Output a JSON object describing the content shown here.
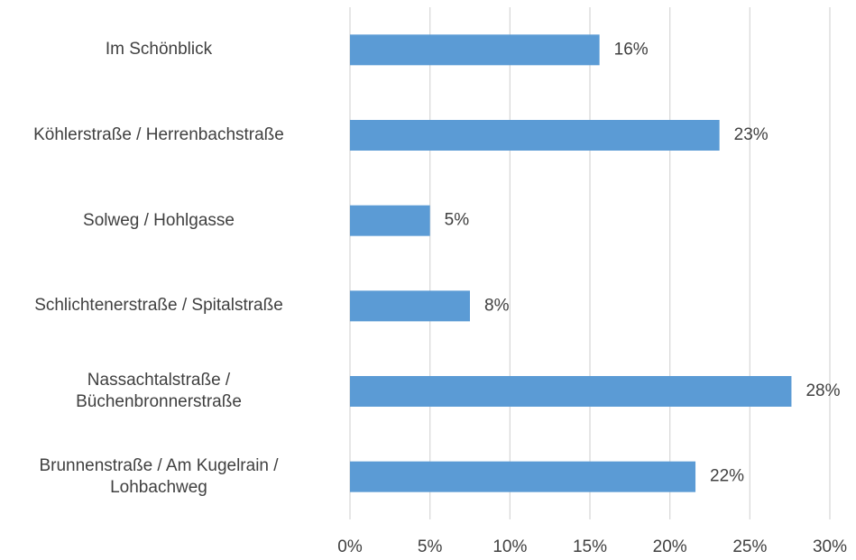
{
  "chart_data": {
    "type": "barh",
    "categories": [
      "Im Schönblick",
      "Köhlerstraße / Herrenbachstraße",
      "Solweg / Hohlgasse",
      "Schlichtenerstraße / Spitalstraße",
      "Nassachtalstraße /\nBüchenbronnerstraße",
      "Brunnenstraße / Am Kugelrain /\nLohbachweg"
    ],
    "values": [
      15.6,
      23.1,
      5.0,
      7.5,
      27.6,
      21.6
    ],
    "value_labels": [
      "16%",
      "23%",
      "5%",
      "8%",
      "28%",
      "22%"
    ],
    "color": "#5b9bd5",
    "xlim": [
      0,
      30
    ],
    "xticks": [
      {
        "value": 0,
        "label": "0%"
      },
      {
        "value": 5,
        "label": "5%"
      },
      {
        "value": 10,
        "label": "10%"
      },
      {
        "value": 15,
        "label": "15%"
      },
      {
        "value": 20,
        "label": "20%"
      },
      {
        "value": 25,
        "label": "25%"
      },
      {
        "value": 30,
        "label": "30%"
      }
    ],
    "grid": true
  }
}
